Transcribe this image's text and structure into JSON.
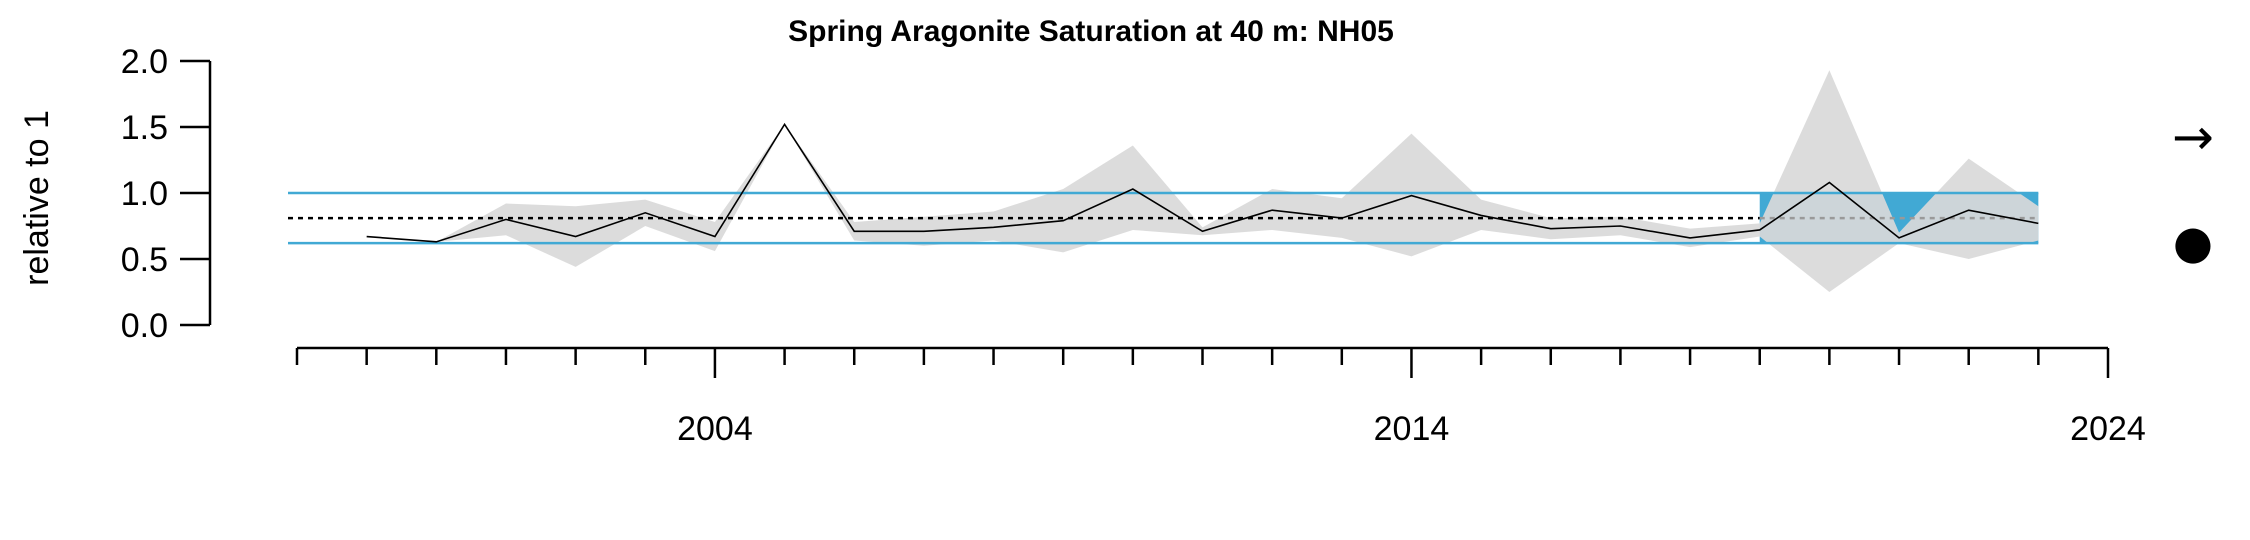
{
  "chart_data": {
    "type": "line",
    "title": "Spring Aragonite Saturation at 40 m: NH05",
    "xlabel": "",
    "ylabel": "relative to 1",
    "x_tick_labels": [
      "2004",
      "2014",
      "2024"
    ],
    "x_ticks": [
      1998,
      1999,
      2000,
      2001,
      2002,
      2003,
      2004,
      2005,
      2006,
      2007,
      2008,
      2009,
      2010,
      2011,
      2012,
      2013,
      2014,
      2015,
      2016,
      2017,
      2018,
      2019,
      2020,
      2021,
      2022,
      2023,
      2024
    ],
    "x_labeled_ticks": [
      2004,
      2014,
      2024
    ],
    "y_ticks": [
      0.0,
      0.5,
      1.0,
      1.5,
      2.0
    ],
    "y_tick_labels": [
      "0.0",
      "0.5",
      "1.0",
      "1.5",
      "2.0"
    ],
    "xlim": [
      1998,
      2024
    ],
    "ylim": [
      0.0,
      2.0
    ],
    "grid": false,
    "series": [
      {
        "values": [
          {
            "x": 1999,
            "y": 0.67
          },
          {
            "x": 2000,
            "y": 0.63
          },
          {
            "x": 2001,
            "y": 0.8
          },
          {
            "x": 2002,
            "y": 0.67
          },
          {
            "x": 2003,
            "y": 0.85
          },
          {
            "x": 2004,
            "y": 0.67
          },
          {
            "x": 2005,
            "y": 1.52
          },
          {
            "x": 2006,
            "y": 0.71
          },
          {
            "x": 2007,
            "y": 0.71
          },
          {
            "x": 2008,
            "y": 0.74
          },
          {
            "x": 2009,
            "y": 0.79
          },
          {
            "x": 2010,
            "y": 1.03
          },
          {
            "x": 2011,
            "y": 0.71
          },
          {
            "x": 2012,
            "y": 0.87
          },
          {
            "x": 2013,
            "y": 0.81
          },
          {
            "x": 2014,
            "y": 0.98
          },
          {
            "x": 2015,
            "y": 0.83
          },
          {
            "x": 2016,
            "y": 0.73
          },
          {
            "x": 2017,
            "y": 0.75
          },
          {
            "x": 2018,
            "y": 0.66
          },
          {
            "x": 2019,
            "y": 0.72
          },
          {
            "x": 2020,
            "y": 1.08
          },
          {
            "x": 2021,
            "y": 0.66
          },
          {
            "x": 2022,
            "y": 0.87
          },
          {
            "x": 2023,
            "y": 0.77
          }
        ],
        "uncertainty_band": [
          {
            "x": 2000,
            "lo": 0.63,
            "hi": 0.63
          },
          {
            "x": 2001,
            "lo": 0.68,
            "hi": 0.92
          },
          {
            "x": 2002,
            "lo": 0.44,
            "hi": 0.9
          },
          {
            "x": 2003,
            "lo": 0.75,
            "hi": 0.95
          },
          {
            "x": 2004,
            "lo": 0.56,
            "hi": 0.78
          },
          {
            "x": 2005,
            "lo": 1.52,
            "hi": 1.52
          },
          {
            "x": 2006,
            "lo": 0.64,
            "hi": 0.78
          },
          {
            "x": 2007,
            "lo": 0.6,
            "hi": 0.82
          },
          {
            "x": 2008,
            "lo": 0.64,
            "hi": 0.86
          },
          {
            "x": 2009,
            "lo": 0.55,
            "hi": 1.03
          },
          {
            "x": 2010,
            "lo": 0.72,
            "hi": 1.36
          },
          {
            "x": 2011,
            "lo": 0.68,
            "hi": 0.74
          },
          {
            "x": 2012,
            "lo": 0.72,
            "hi": 1.03
          },
          {
            "x": 2013,
            "lo": 0.66,
            "hi": 0.96
          },
          {
            "x": 2014,
            "lo": 0.52,
            "hi": 1.45
          },
          {
            "x": 2015,
            "lo": 0.72,
            "hi": 0.95
          },
          {
            "x": 2016,
            "lo": 0.65,
            "hi": 0.81
          },
          {
            "x": 2017,
            "lo": 0.68,
            "hi": 0.82
          },
          {
            "x": 2018,
            "lo": 0.59,
            "hi": 0.73
          },
          {
            "x": 2019,
            "lo": 0.67,
            "hi": 0.77
          },
          {
            "x": 2020,
            "lo": 0.25,
            "hi": 1.93
          },
          {
            "x": 2021,
            "lo": 0.62,
            "hi": 0.7
          },
          {
            "x": 2022,
            "lo": 0.5,
            "hi": 1.26
          },
          {
            "x": 2023,
            "lo": 0.64,
            "hi": 0.9
          }
        ]
      }
    ],
    "reference_lines": {
      "upper": 1.0,
      "lower": 0.62,
      "mean": 0.81
    },
    "recent_period": {
      "from": 2019,
      "to": 2023
    },
    "symbols": {
      "trend": "→",
      "status": "●"
    },
    "colors": {
      "line": "#000000",
      "band": "#d9d9d9",
      "limits": "#41a9d4",
      "recent_highlight": "#41a9d4",
      "mean_dotted": "#000000",
      "mean_dotted_recent": "#999999"
    }
  }
}
